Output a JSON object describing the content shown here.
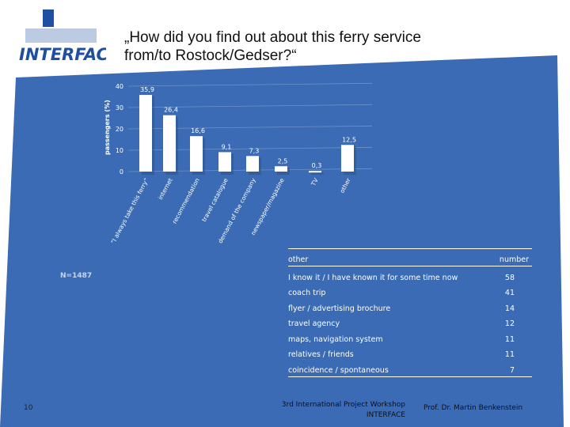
{
  "logo": {
    "text": "INTERFACE"
  },
  "title": {
    "line1": "„How did you find out about this ferry service",
    "line2": "from/to Rostock/Gedser?“"
  },
  "chart_data": {
    "type": "bar",
    "categories": [
      "“I always take this ferry”",
      "internet",
      "recommendation",
      "travel catalogue",
      "demand of the company",
      "newspaper/magazine",
      "TV",
      "other"
    ],
    "values": [
      35.9,
      26.4,
      16.6,
      9.1,
      7.3,
      2.5,
      0.3,
      12.5
    ],
    "value_labels": [
      "35,9",
      "26,4",
      "16,6",
      "9,1",
      "7,3",
      "2,5",
      "0,3",
      "12,5"
    ],
    "yticks": [
      "0",
      "10",
      "20",
      "30",
      "40"
    ],
    "ylabel": "passengers (%)",
    "ylim": [
      0,
      40
    ]
  },
  "sample": "N=1487",
  "table": {
    "header": {
      "col1": "other",
      "col2": "number"
    },
    "rows": [
      {
        "label": "I know it / I have known it for some time now",
        "value": "58"
      },
      {
        "label": "coach trip",
        "value": "41"
      },
      {
        "label": "flyer / advertising brochure",
        "value": "14"
      },
      {
        "label": "travel agency",
        "value": "12"
      },
      {
        "label": "maps, navigation system",
        "value": "11"
      },
      {
        "label": "relatives / friends",
        "value": "11"
      },
      {
        "label": "coincidence / spontaneous",
        "value": "7"
      }
    ]
  },
  "footer": {
    "page": "10",
    "workshop_line1": "3rd International Project Workshop",
    "workshop_line2": "INTERFACE",
    "author": "Prof. Dr. Martin Benkenstein"
  },
  "colors": {
    "panel": "#3a6bb4",
    "bar": "#ffffff",
    "logo": "#1f4fa0"
  }
}
